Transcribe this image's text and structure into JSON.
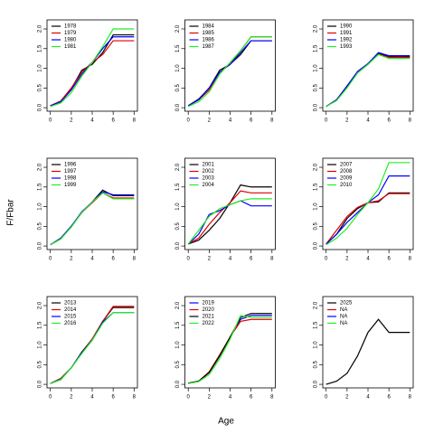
{
  "ylabel": "F/Fbar",
  "xlabel": "Age",
  "chart_data": [
    {
      "type": "line",
      "x": [
        0,
        1,
        2,
        3,
        4,
        5,
        6,
        7,
        8
      ],
      "xlim": [
        -0.32,
        8.32
      ],
      "ylim": [
        -0.09,
        2.23
      ],
      "xticks": [
        0,
        2,
        4,
        6,
        8
      ],
      "yticks": [
        {
          "value": 0,
          "label": "0.0"
        },
        {
          "value": 0.5,
          "label": "0.5"
        },
        {
          "value": 1,
          "label": "1.0"
        },
        {
          "value": 1.5,
          "label": "1.5"
        },
        {
          "value": 2,
          "label": "2.0"
        }
      ],
      "series": [
        {
          "name": "1978",
          "color": "#000000",
          "values": [
            0.05,
            0.15,
            0.48,
            0.95,
            1.1,
            1.4,
            1.85,
            1.85,
            1.85
          ]
        },
        {
          "name": "1979",
          "color": "#df0000",
          "values": [
            0.05,
            0.17,
            0.5,
            0.9,
            1.15,
            1.35,
            1.7,
            1.7,
            1.7
          ]
        },
        {
          "name": "1980",
          "color": "#0000ff",
          "values": [
            0.05,
            0.15,
            0.45,
            0.85,
            1.15,
            1.5,
            1.8,
            1.8,
            1.8
          ]
        },
        {
          "name": "1981",
          "color": "#22ee22",
          "values": [
            0.03,
            0.12,
            0.38,
            0.8,
            1.15,
            1.55,
            2.0,
            2.0,
            2.0
          ]
        }
      ]
    },
    {
      "type": "line",
      "x": [
        0,
        1,
        2,
        3,
        4,
        5,
        6,
        7,
        8
      ],
      "xlim": [
        -0.32,
        8.32
      ],
      "ylim": [
        -0.09,
        2.23
      ],
      "xticks": [
        0,
        2,
        4,
        6,
        8
      ],
      "yticks": [
        {
          "value": 0,
          "label": "0.0"
        },
        {
          "value": 0.5,
          "label": "0.5"
        },
        {
          "value": 1,
          "label": "1.0"
        },
        {
          "value": 1.5,
          "label": "1.5"
        },
        {
          "value": 2,
          "label": "2.0"
        }
      ],
      "series": [
        {
          "name": "1984",
          "color": "#000000",
          "values": [
            0.05,
            0.22,
            0.5,
            0.95,
            1.1,
            1.35,
            1.7,
            1.7,
            1.7
          ]
        },
        {
          "name": "1985",
          "color": "#df0000",
          "values": [
            0.05,
            0.2,
            0.45,
            0.9,
            1.1,
            1.45,
            1.8,
            1.8,
            1.8
          ]
        },
        {
          "name": "1986",
          "color": "#0000ff",
          "values": [
            0.05,
            0.2,
            0.5,
            0.9,
            1.1,
            1.4,
            1.7,
            1.7,
            1.7
          ]
        },
        {
          "name": "1987",
          "color": "#22ee22",
          "values": [
            0.03,
            0.15,
            0.4,
            0.85,
            1.15,
            1.45,
            1.8,
            1.8,
            1.8
          ]
        }
      ]
    },
    {
      "type": "line",
      "x": [
        0,
        1,
        2,
        3,
        4,
        5,
        6,
        7,
        8
      ],
      "xlim": [
        -0.32,
        8.32
      ],
      "ylim": [
        -0.09,
        2.23
      ],
      "xticks": [
        0,
        2,
        4,
        6,
        8
      ],
      "yticks": [
        {
          "value": 0,
          "label": "0.0"
        },
        {
          "value": 0.5,
          "label": "0.5"
        },
        {
          "value": 1,
          "label": "1.0"
        },
        {
          "value": 1.5,
          "label": "1.5"
        },
        {
          "value": 2,
          "label": "2.0"
        }
      ],
      "series": [
        {
          "name": "1990",
          "color": "#000000",
          "values": [
            0.03,
            0.2,
            0.55,
            0.9,
            1.1,
            1.38,
            1.3,
            1.3,
            1.3
          ]
        },
        {
          "name": "1991",
          "color": "#df0000",
          "values": [
            0.03,
            0.2,
            0.55,
            0.9,
            1.12,
            1.35,
            1.28,
            1.28,
            1.28
          ]
        },
        {
          "name": "1992",
          "color": "#0000ff",
          "values": [
            0.03,
            0.2,
            0.55,
            0.92,
            1.12,
            1.4,
            1.32,
            1.32,
            1.32
          ]
        },
        {
          "name": "1993",
          "color": "#22ee22",
          "values": [
            0.03,
            0.18,
            0.5,
            0.88,
            1.1,
            1.35,
            1.25,
            1.25,
            1.25
          ]
        }
      ]
    },
    {
      "type": "line",
      "x": [
        0,
        1,
        2,
        3,
        4,
        5,
        6,
        7,
        8
      ],
      "xlim": [
        -0.32,
        8.32
      ],
      "ylim": [
        -0.09,
        2.23
      ],
      "xticks": [
        0,
        2,
        4,
        6,
        8
      ],
      "yticks": [
        {
          "value": 0,
          "label": "0.0"
        },
        {
          "value": 0.5,
          "label": "0.5"
        },
        {
          "value": 1,
          "label": "1.0"
        },
        {
          "value": 1.5,
          "label": "1.5"
        },
        {
          "value": 2,
          "label": "2.0"
        }
      ],
      "series": [
        {
          "name": "1996",
          "color": "#000000",
          "values": [
            0.03,
            0.2,
            0.5,
            0.85,
            1.12,
            1.42,
            1.28,
            1.28,
            1.28
          ]
        },
        {
          "name": "1997",
          "color": "#df0000",
          "values": [
            0.03,
            0.18,
            0.5,
            0.85,
            1.1,
            1.35,
            1.22,
            1.22,
            1.22
          ]
        },
        {
          "name": "1998",
          "color": "#0000ff",
          "values": [
            0.03,
            0.2,
            0.5,
            0.87,
            1.12,
            1.38,
            1.3,
            1.3,
            1.3
          ]
        },
        {
          "name": "1999",
          "color": "#22ee22",
          "values": [
            0.03,
            0.18,
            0.48,
            0.85,
            1.12,
            1.35,
            1.2,
            1.2,
            1.2
          ]
        }
      ]
    },
    {
      "type": "line",
      "x": [
        0,
        1,
        2,
        3,
        4,
        5,
        6,
        7,
        8
      ],
      "xlim": [
        -0.32,
        8.32
      ],
      "ylim": [
        -0.09,
        2.23
      ],
      "xticks": [
        0,
        2,
        4,
        6,
        8
      ],
      "yticks": [
        {
          "value": 0,
          "label": "0.0"
        },
        {
          "value": 0.5,
          "label": "0.5"
        },
        {
          "value": 1,
          "label": "1.0"
        },
        {
          "value": 1.5,
          "label": "1.5"
        },
        {
          "value": 2,
          "label": "2.0"
        }
      ],
      "series": [
        {
          "name": "2001",
          "color": "#000000",
          "values": [
            0.05,
            0.15,
            0.4,
            0.7,
            1.1,
            1.55,
            1.5,
            1.5,
            1.5
          ]
        },
        {
          "name": "2002",
          "color": "#df0000",
          "values": [
            0.05,
            0.2,
            0.55,
            0.85,
            1.1,
            1.4,
            1.35,
            1.35,
            1.35
          ]
        },
        {
          "name": "2003",
          "color": "#0000ff",
          "values": [
            0.05,
            0.3,
            0.8,
            0.9,
            1.05,
            1.15,
            1.02,
            1.02,
            1.02
          ]
        },
        {
          "name": "2004",
          "color": "#22ee22",
          "values": [
            0.05,
            0.4,
            0.75,
            0.95,
            1.05,
            1.15,
            1.2,
            1.2,
            1.2
          ]
        }
      ]
    },
    {
      "type": "line",
      "x": [
        0,
        1,
        2,
        3,
        4,
        5,
        6,
        7,
        8
      ],
      "xlim": [
        -0.32,
        8.32
      ],
      "ylim": [
        -0.09,
        2.23
      ],
      "xticks": [
        0,
        2,
        4,
        6,
        8
      ],
      "yticks": [
        {
          "value": 0,
          "label": "0.0"
        },
        {
          "value": 0.5,
          "label": "0.5"
        },
        {
          "value": 1,
          "label": "1.0"
        },
        {
          "value": 1.5,
          "label": "1.5"
        },
        {
          "value": 2,
          "label": "2.0"
        }
      ],
      "series": [
        {
          "name": "2007",
          "color": "#000000",
          "values": [
            0.05,
            0.3,
            0.7,
            0.95,
            1.1,
            1.12,
            1.35,
            1.35,
            1.35
          ]
        },
        {
          "name": "2008",
          "color": "#df0000",
          "values": [
            0.05,
            0.4,
            0.75,
            0.98,
            1.1,
            1.15,
            1.33,
            1.33,
            1.33
          ]
        },
        {
          "name": "2009",
          "color": "#0000ff",
          "values": [
            0.05,
            0.3,
            0.6,
            0.85,
            1.1,
            1.3,
            1.78,
            1.78,
            1.78
          ]
        },
        {
          "name": "2010",
          "color": "#22ee22",
          "values": [
            0.03,
            0.2,
            0.45,
            0.8,
            1.1,
            1.45,
            2.12,
            2.12,
            2.12
          ]
        }
      ]
    },
    {
      "type": "line",
      "x": [
        0,
        1,
        2,
        3,
        4,
        5,
        6,
        7,
        8
      ],
      "xlim": [
        -0.32,
        8.32
      ],
      "ylim": [
        -0.09,
        2.23
      ],
      "xticks": [
        0,
        2,
        4,
        6,
        8
      ],
      "yticks": [
        {
          "value": 0,
          "label": "0.0"
        },
        {
          "value": 0.5,
          "label": "0.5"
        },
        {
          "value": 1,
          "label": "1.0"
        },
        {
          "value": 1.5,
          "label": "1.5"
        },
        {
          "value": 2,
          "label": "2.0"
        }
      ],
      "series": [
        {
          "name": "2013",
          "color": "#000000",
          "values": [
            0.02,
            0.15,
            0.42,
            0.82,
            1.15,
            1.6,
            1.95,
            1.95,
            1.95
          ]
        },
        {
          "name": "2014",
          "color": "#df0000",
          "values": [
            0.02,
            0.14,
            0.42,
            0.8,
            1.15,
            1.6,
            1.98,
            1.98,
            1.98
          ]
        },
        {
          "name": "2015",
          "color": "#0000ff",
          "values": [
            0.02,
            0.12,
            0.42,
            0.8,
            1.12,
            1.58,
            1.82,
            1.82,
            1.82
          ]
        },
        {
          "name": "2016",
          "color": "#22ee22",
          "values": [
            0.02,
            0.12,
            0.42,
            0.78,
            1.12,
            1.55,
            1.82,
            1.82,
            1.82
          ]
        }
      ]
    },
    {
      "type": "line",
      "x": [
        0,
        1,
        2,
        3,
        4,
        5,
        6,
        7,
        8
      ],
      "xlim": [
        -0.32,
        8.32
      ],
      "ylim": [
        -0.09,
        2.23
      ],
      "xticks": [
        0,
        2,
        4,
        6,
        8
      ],
      "yticks": [
        {
          "value": 0,
          "label": "0.0"
        },
        {
          "value": 0.5,
          "label": "0.5"
        },
        {
          "value": 1,
          "label": "1.0"
        },
        {
          "value": 1.5,
          "label": "1.5"
        },
        {
          "value": 2,
          "label": "2.0"
        }
      ],
      "series": [
        {
          "name": "2019",
          "color": "#0000ff",
          "values": [
            0.03,
            0.08,
            0.3,
            0.72,
            1.2,
            1.65,
            1.75,
            1.75,
            1.75
          ]
        },
        {
          "name": "2020",
          "color": "#df0000",
          "values": [
            0.03,
            0.08,
            0.32,
            0.75,
            1.2,
            1.6,
            1.65,
            1.65,
            1.65
          ]
        },
        {
          "name": "2021",
          "color": "#000000",
          "values": [
            0.03,
            0.08,
            0.3,
            0.72,
            1.2,
            1.7,
            1.8,
            1.8,
            1.8
          ]
        },
        {
          "name": "2022",
          "color": "#22ee22",
          "values": [
            0.02,
            0.07,
            0.25,
            0.65,
            1.15,
            1.75,
            1.7,
            1.7,
            1.7
          ]
        }
      ]
    },
    {
      "type": "line",
      "x": [
        0,
        1,
        2,
        3,
        4,
        5,
        6,
        7,
        8
      ],
      "xlim": [
        -0.32,
        8.32
      ],
      "ylim": [
        -0.09,
        2.23
      ],
      "xticks": [
        0,
        2,
        4,
        6,
        8
      ],
      "yticks": [
        {
          "value": 0,
          "label": "0.0"
        },
        {
          "value": 0.5,
          "label": "0.5"
        },
        {
          "value": 1,
          "label": "1.0"
        },
        {
          "value": 1.5,
          "label": "1.5"
        },
        {
          "value": 2,
          "label": "2.0"
        }
      ],
      "series": [
        {
          "name": "2025",
          "color": "#000000",
          "values": [
            0.0,
            0.08,
            0.28,
            0.72,
            1.32,
            1.65,
            1.32,
            1.32,
            1.32
          ]
        },
        {
          "name": "NA",
          "color": "#df0000",
          "values": [
            null,
            null,
            null,
            null,
            null,
            null,
            null,
            null,
            null
          ]
        },
        {
          "name": "NA",
          "color": "#0000ff",
          "values": [
            null,
            null,
            null,
            null,
            null,
            null,
            null,
            null,
            null
          ]
        },
        {
          "name": "NA",
          "color": "#22ee22",
          "values": [
            null,
            null,
            null,
            null,
            null,
            null,
            null,
            null,
            null
          ]
        }
      ]
    }
  ]
}
